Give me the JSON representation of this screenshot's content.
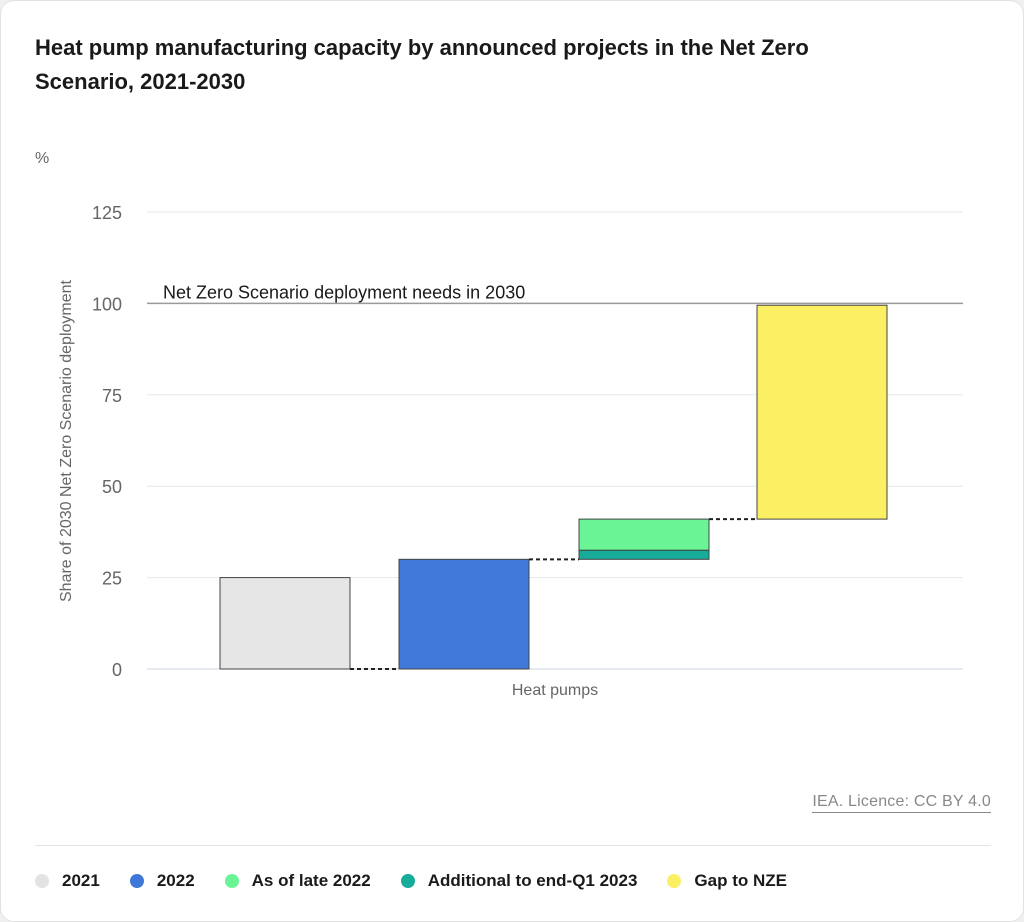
{
  "title": "Heat pump manufacturing capacity by announced projects in the Net Zero Scenario, 2021-2030",
  "credit": "IEA. Licence: CC BY 4.0",
  "chart_data": {
    "type": "bar",
    "subtype": "waterfall",
    "unit": "%",
    "ylabel": "Share of 2030 Net Zero Scenario deployment",
    "xlabel": "",
    "category": "Heat pumps",
    "ylim": [
      0,
      125
    ],
    "yticks": [
      0,
      25,
      50,
      75,
      100,
      125
    ],
    "grid": true,
    "reference_line": {
      "value": 100,
      "label": "Net Zero Scenario deployment needs in 2030"
    },
    "series": [
      {
        "name": "2021",
        "base": 0,
        "value": 25,
        "color": "#e6e6e6"
      },
      {
        "name": "2022",
        "base": 0,
        "value": 30,
        "color": "#3f78d8"
      },
      {
        "name": "Additional to end-Q1 2023",
        "base": 30,
        "value": 2.5,
        "color": "#17ab9a"
      },
      {
        "name": "As of late 2022",
        "base": 32.5,
        "value": 8.5,
        "color": "#6af496"
      },
      {
        "name": "Gap to NZE",
        "base": 41,
        "value": 58.5,
        "color": "#fbf064"
      }
    ],
    "connectors": [
      {
        "from": "2021",
        "to": "2022",
        "value": 0
      },
      {
        "from": "2022",
        "to": "Additional to end-Q1 2023",
        "value": 30
      },
      {
        "from": "As of late 2022",
        "to": "Gap to NZE",
        "value": 41
      }
    ],
    "legend": {
      "position": "bottom",
      "items": [
        {
          "label": "2021",
          "color": "#e3e3e3"
        },
        {
          "label": "2022",
          "color": "#3f78d8"
        },
        {
          "label": "As of late 2022",
          "color": "#6af496"
        },
        {
          "label": "Additional to end-Q1 2023",
          "color": "#17ab9a"
        },
        {
          "label": "Gap to NZE",
          "color": "#fbf064"
        }
      ]
    }
  }
}
